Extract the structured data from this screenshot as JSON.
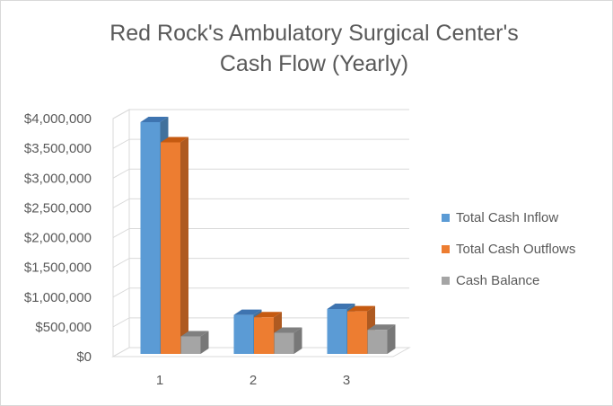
{
  "chart_data": {
    "type": "bar",
    "style": "3d-clustered-column",
    "title_lines": [
      "Red Rock's Ambulatory Surgical Center's",
      "Cash Flow (Yearly)"
    ],
    "categories": [
      "1",
      "2",
      "3"
    ],
    "series": [
      {
        "name": "Total Cash Inflow",
        "color": "#5b9bd5",
        "side_color": "#41719c",
        "top_color": "#3e74b0",
        "values": [
          3940000,
          700000,
          800000
        ]
      },
      {
        "name": "Total Cash Outflows",
        "color": "#ed7d31",
        "side_color": "#ae5a21",
        "top_color": "#c55a11",
        "values": [
          3600000,
          660000,
          760000
        ]
      },
      {
        "name": "Cash Balance",
        "color": "#a5a5a5",
        "side_color": "#787878",
        "top_color": "#7f7f7f",
        "values": [
          340000,
          400000,
          450000
        ]
      }
    ],
    "ylim": [
      0,
      4000000
    ],
    "y_ticks": [
      0,
      500000,
      1000000,
      1500000,
      2000000,
      2500000,
      3000000,
      3500000,
      4000000
    ],
    "y_tick_labels": [
      "$0",
      "$500,000",
      "$1,000,000",
      "$1,500,000",
      "$2,000,000",
      "$2,500,000",
      "$3,000,000",
      "$3,500,000",
      "$4,000,000"
    ],
    "xlabel": "",
    "ylabel": "",
    "grid": true,
    "legend_position": "right"
  }
}
